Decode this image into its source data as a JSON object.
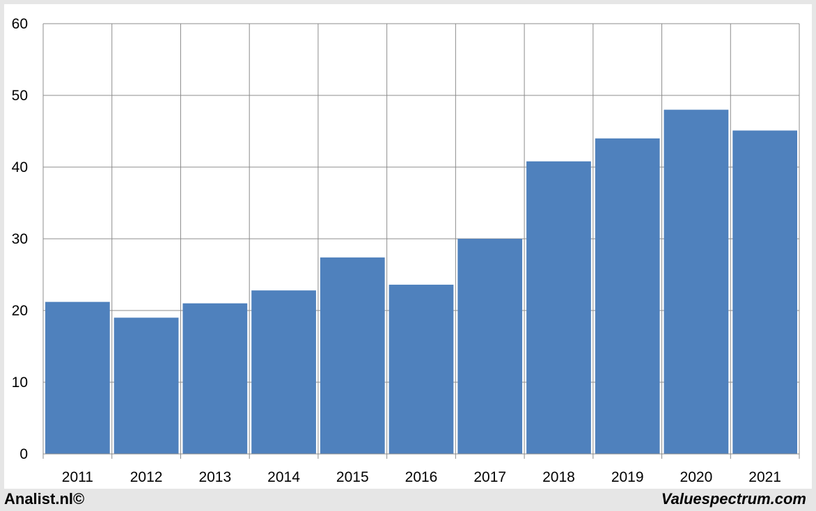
{
  "chart_data": {
    "type": "bar",
    "categories": [
      "2011",
      "2012",
      "2013",
      "2014",
      "2015",
      "2016",
      "2017",
      "2018",
      "2019",
      "2020",
      "2021"
    ],
    "values": [
      21.2,
      19.0,
      21.0,
      22.8,
      27.4,
      23.6,
      30.0,
      40.8,
      44.0,
      48.0,
      45.1
    ],
    "ylim": [
      0,
      60
    ],
    "yticks": [
      "0",
      "10",
      "20",
      "30",
      "40",
      "50",
      "60"
    ],
    "grid": true,
    "bar_color": "#4f81bd",
    "title": "",
    "xlabel": "",
    "ylabel": ""
  },
  "footer": {
    "left_text": "Analist.nl©",
    "right_text": "Valuespectrum.com"
  }
}
